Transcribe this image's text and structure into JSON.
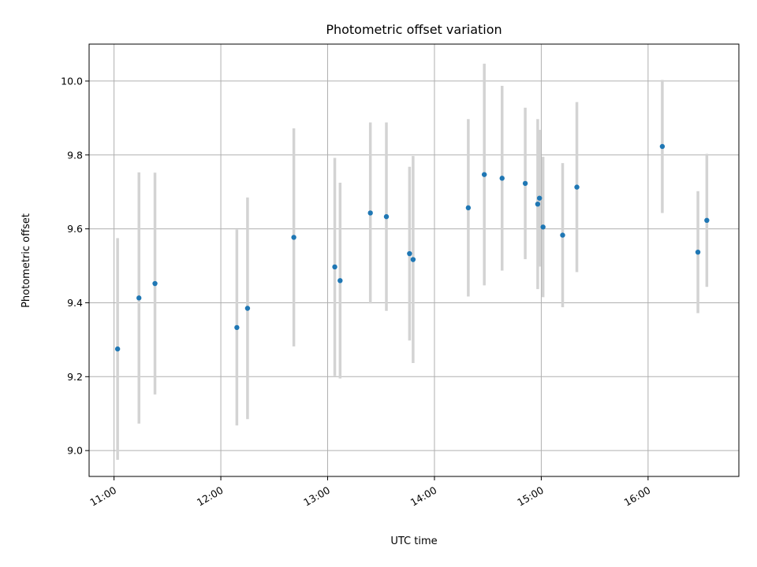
{
  "chart_data": {
    "type": "scatter",
    "title": "Photometric offset variation",
    "xlabel": "UTC time",
    "ylabel": "Photometric offset",
    "x_axis_type": "time",
    "xlim": [
      "10:46",
      "16:51"
    ],
    "ylim": [
      8.93,
      10.1
    ],
    "xticks": [
      "11:00",
      "12:00",
      "13:00",
      "14:00",
      "15:00",
      "16:00"
    ],
    "yticks": [
      9.0,
      9.2,
      9.4,
      9.6,
      9.8,
      10.0
    ],
    "ytick_labels": [
      "9.0",
      "9.2",
      "9.4",
      "9.6",
      "9.8",
      "10.0"
    ],
    "grid": true,
    "legend": "none",
    "colors": {
      "points": "#1f77b4",
      "error_bars": "#d3d3d3",
      "grid": "#b0b0b0"
    },
    "series": [
      {
        "points": [
          {
            "x": "11:02",
            "y": 9.275,
            "yerr": 0.3
          },
          {
            "x": "11:14",
            "y": 9.413,
            "yerr": 0.34
          },
          {
            "x": "11:23",
            "y": 9.452,
            "yerr": 0.3
          },
          {
            "x": "12:09",
            "y": 9.333,
            "yerr": 0.265
          },
          {
            "x": "12:15",
            "y": 9.385,
            "yerr": 0.3
          },
          {
            "x": "12:41",
            "y": 9.577,
            "yerr": 0.295
          },
          {
            "x": "13:04",
            "y": 9.497,
            "yerr": 0.295
          },
          {
            "x": "13:07",
            "y": 9.46,
            "yerr": 0.265
          },
          {
            "x": "13:24",
            "y": 9.643,
            "yerr": 0.245
          },
          {
            "x": "13:33",
            "y": 9.633,
            "yerr": 0.255
          },
          {
            "x": "13:46",
            "y": 9.533,
            "yerr": 0.235
          },
          {
            "x": "13:48",
            "y": 9.517,
            "yerr": 0.28
          },
          {
            "x": "14:19",
            "y": 9.657,
            "yerr": 0.24
          },
          {
            "x": "14:28",
            "y": 9.747,
            "yerr": 0.3
          },
          {
            "x": "14:38",
            "y": 9.737,
            "yerr": 0.25
          },
          {
            "x": "14:51",
            "y": 9.723,
            "yerr": 0.205
          },
          {
            "x": "14:58",
            "y": 9.667,
            "yerr": 0.23
          },
          {
            "x": "14:59",
            "y": 9.683,
            "yerr": 0.185
          },
          {
            "x": "15:01",
            "y": 9.605,
            "yerr": 0.19
          },
          {
            "x": "15:12",
            "y": 9.583,
            "yerr": 0.195
          },
          {
            "x": "15:20",
            "y": 9.713,
            "yerr": 0.23
          },
          {
            "x": "16:08",
            "y": 9.823,
            "yerr": 0.18
          },
          {
            "x": "16:28",
            "y": 9.537,
            "yerr": 0.165
          },
          {
            "x": "16:33",
            "y": 9.623,
            "yerr": 0.18
          }
        ]
      }
    ]
  }
}
